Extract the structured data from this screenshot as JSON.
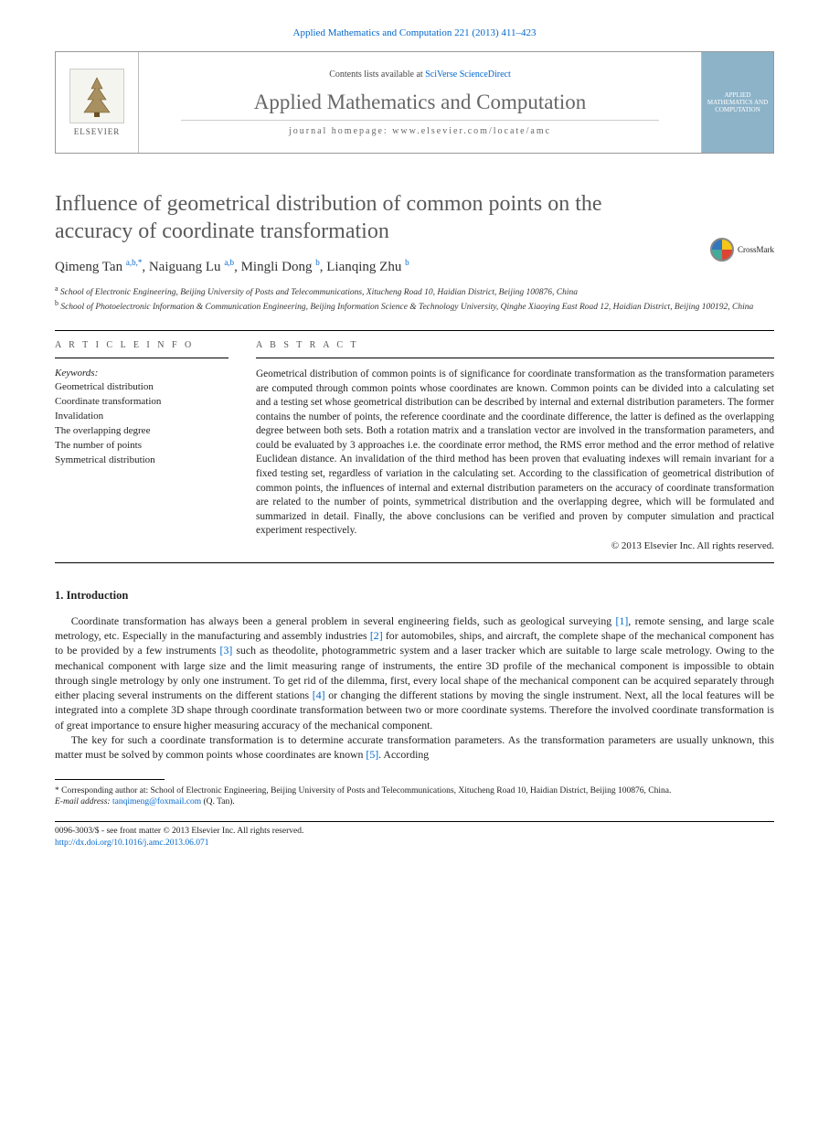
{
  "citation": "Applied Mathematics and Computation 221 (2013) 411–423",
  "header": {
    "elsevier": "ELSEVIER",
    "contents_prefix": "Contents lists available at ",
    "contents_link": "SciVerse ScienceDirect",
    "journal_title": "Applied Mathematics and Computation",
    "homepage_prefix": "journal homepage: ",
    "homepage_url": "www.elsevier.com/locate/amc",
    "cover_text": "APPLIED MATHEMATICS AND COMPUTATION"
  },
  "crossmark_label": "CrossMark",
  "title": "Influence of geometrical distribution of common points on the accuracy of coordinate transformation",
  "authors_html": "Qimeng Tan <sup>a,b,*</sup>, Naiguang Lu <sup>a,b</sup>, Mingli Dong <sup>b</sup>, Lianqing Zhu <sup>b</sup>",
  "affiliations": {
    "a": "School of Electronic Engineering, Beijing University of Posts and Telecommunications, Xitucheng Road 10, Haidian District, Beijing 100876, China",
    "b": "School of Photoelectronic Information & Communication Engineering, Beijing Information Science & Technology University, Qinghe Xiaoying East Road 12, Haidian District, Beijing 100192, China"
  },
  "labels": {
    "article_info": "A R T I C L E   I N F O",
    "abstract": "A B S T R A C T",
    "keywords": "Keywords:"
  },
  "keywords": [
    "Geometrical distribution",
    "Coordinate transformation",
    "Invalidation",
    "The overlapping degree",
    "The number of points",
    "Symmetrical distribution"
  ],
  "abstract": "Geometrical distribution of common points is of significance for coordinate transformation as the transformation parameters are computed through common points whose coordinates are known. Common points can be divided into a calculating set and a testing set whose geometrical distribution can be described by internal and external distribution parameters. The former contains the number of points, the reference coordinate and the coordinate difference, the latter is defined as the overlapping degree between both sets. Both a rotation matrix and a translation vector are involved in the transformation parameters, and could be evaluated by 3 approaches i.e. the coordinate error method, the RMS error method and the error method of relative Euclidean distance. An invalidation of the third method has been proven that evaluating indexes will remain invariant for a fixed testing set, regardless of variation in the calculating set. According to the classification of geometrical distribution of common points, the influences of internal and external distribution parameters on the accuracy of coordinate transformation are related to the number of points, symmetrical distribution and the overlapping degree, which will be formulated and summarized in detail. Finally, the above conclusions can be verified and proven by computer simulation and practical experiment respectively.",
  "copyright": "© 2013 Elsevier Inc. All rights reserved.",
  "intro_heading": "1. Introduction",
  "intro_p1_pre": "Coordinate transformation has always been a general problem in several engineering fields, such as geological surveying ",
  "intro_p1_post1": ", remote sensing, and large scale metrology, etc. Especially in the manufacturing and assembly industries ",
  "intro_p1_post2": " for automobiles, ships, and aircraft, the complete shape of the mechanical component has to be provided by a few instruments ",
  "intro_p1_post3": " such as theodolite, photogrammetric system and a laser tracker which are suitable to large scale metrology. Owing to the mechanical component with large size and the limit measuring range of instruments, the entire 3D profile of the mechanical component is impossible to obtain through single metrology by only one instrument. To get rid of the dilemma, first, every local shape of the mechanical component can be acquired separately through either placing several instruments on the different stations ",
  "intro_p1_post4": " or changing the different stations by moving the single instrument. Next, all the local features will be integrated into a complete 3D shape through coordinate transformation between two or more coordinate systems. Therefore the involved coordinate transformation is of great importance to ensure higher measuring accuracy of the mechanical component.",
  "intro_p2_pre": "The key for such a coordinate transformation is to determine accurate transformation parameters. As the transformation parameters are usually unknown, this matter must be solved by common points whose coordinates are known ",
  "intro_p2_post": ". According",
  "refs": {
    "r1": "[1]",
    "r2": "[2]",
    "r3": "[3]",
    "r4": "[4]",
    "r5": "[5]"
  },
  "footnote": {
    "corr_label": "* Corresponding author at: ",
    "corr_text": "School of Electronic Engineering, Beijing University of Posts and Telecommunications, Xitucheng Road 10, Haidian District, Beijing 100876, China.",
    "email_label": "E-mail address: ",
    "email": "tanqimeng@foxmail.com",
    "email_suffix": " (Q. Tan)."
  },
  "bottom": {
    "line1": "0096-3003/$ - see front matter © 2013 Elsevier Inc. All rights reserved.",
    "doi": "http://dx.doi.org/10.1016/j.amc.2013.06.071"
  }
}
